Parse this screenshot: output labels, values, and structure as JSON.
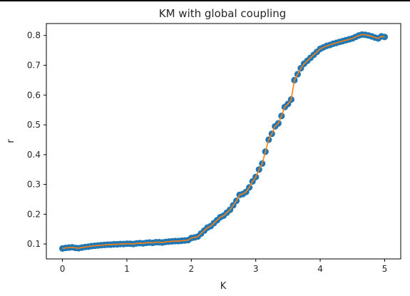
{
  "chart_data": {
    "type": "scatter",
    "title": "KM with global coupling",
    "xlabel": "K",
    "ylabel": "r",
    "xlim": [
      -0.25,
      5.25
    ],
    "ylim": [
      0.05,
      0.84
    ],
    "xticks": [
      "0",
      "1",
      "2",
      "3",
      "4",
      "5"
    ],
    "yticks": [
      "0.1",
      "0.2",
      "0.3",
      "0.4",
      "0.5",
      "0.6",
      "0.7",
      "0.8"
    ],
    "grid": false,
    "series": [
      {
        "style": "markers+line",
        "marker_color": "#1f77b4",
        "line_color": "#ff7f0e",
        "x": [
          0.0,
          0.05,
          0.1,
          0.15,
          0.2,
          0.25,
          0.3,
          0.35,
          0.4,
          0.45,
          0.5,
          0.55,
          0.6,
          0.65,
          0.7,
          0.75,
          0.8,
          0.85,
          0.9,
          0.95,
          1.0,
          1.05,
          1.1,
          1.15,
          1.2,
          1.25,
          1.3,
          1.35,
          1.4,
          1.45,
          1.5,
          1.55,
          1.6,
          1.65,
          1.7,
          1.75,
          1.8,
          1.85,
          1.9,
          1.95,
          2.0,
          2.05,
          2.1,
          2.15,
          2.2,
          2.25,
          2.3,
          2.35,
          2.4,
          2.45,
          2.5,
          2.55,
          2.6,
          2.65,
          2.7,
          2.75,
          2.8,
          2.85,
          2.9,
          2.95,
          3.0,
          3.05,
          3.1,
          3.15,
          3.2,
          3.25,
          3.3,
          3.35,
          3.4,
          3.45,
          3.5,
          3.55,
          3.6,
          3.65,
          3.7,
          3.75,
          3.8,
          3.85,
          3.9,
          3.95,
          4.0,
          4.05,
          4.1,
          4.15,
          4.2,
          4.25,
          4.3,
          4.35,
          4.4,
          4.45,
          4.5,
          4.55,
          4.6,
          4.65,
          4.7,
          4.75,
          4.8,
          4.85,
          4.9,
          4.95,
          5.0
        ],
        "y": [
          0.085,
          0.087,
          0.088,
          0.089,
          0.087,
          0.086,
          0.088,
          0.09,
          0.091,
          0.093,
          0.094,
          0.095,
          0.096,
          0.097,
          0.098,
          0.098,
          0.099,
          0.099,
          0.1,
          0.1,
          0.101,
          0.101,
          0.1,
          0.102,
          0.103,
          0.102,
          0.104,
          0.105,
          0.104,
          0.106,
          0.106,
          0.105,
          0.107,
          0.108,
          0.109,
          0.11,
          0.11,
          0.111,
          0.112,
          0.113,
          0.12,
          0.122,
          0.125,
          0.135,
          0.145,
          0.155,
          0.16,
          0.17,
          0.18,
          0.19,
          0.195,
          0.205,
          0.215,
          0.23,
          0.245,
          0.265,
          0.268,
          0.275,
          0.29,
          0.31,
          0.325,
          0.35,
          0.37,
          0.41,
          0.45,
          0.47,
          0.495,
          0.505,
          0.53,
          0.56,
          0.57,
          0.585,
          0.65,
          0.67,
          0.69,
          0.705,
          0.715,
          0.725,
          0.735,
          0.745,
          0.755,
          0.76,
          0.765,
          0.768,
          0.772,
          0.775,
          0.778,
          0.781,
          0.784,
          0.787,
          0.79,
          0.795,
          0.8,
          0.803,
          0.802,
          0.8,
          0.797,
          0.793,
          0.79,
          0.797,
          0.795
        ]
      }
    ]
  }
}
